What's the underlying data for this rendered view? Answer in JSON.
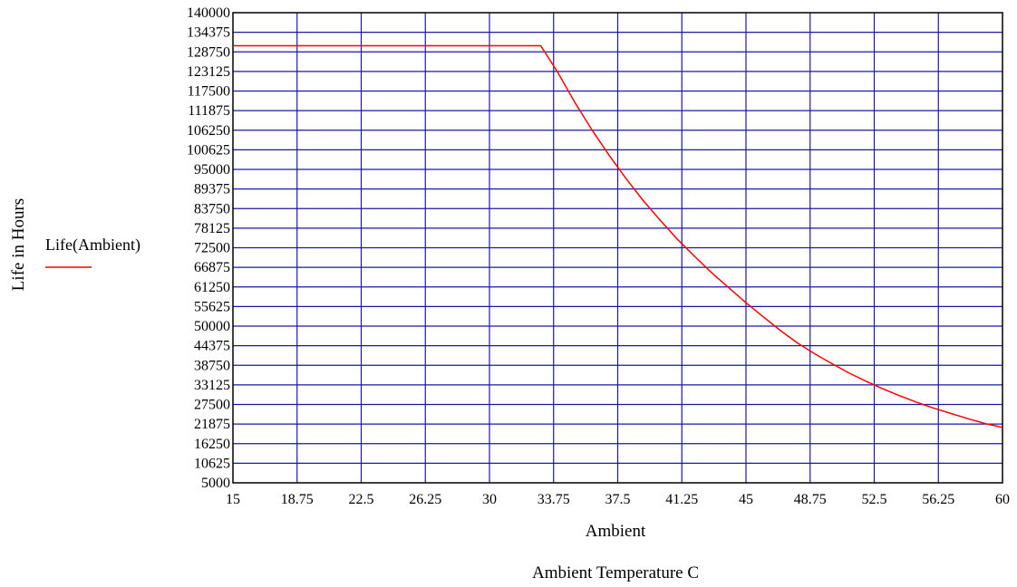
{
  "chart_data": {
    "type": "line",
    "xlabel": "Ambient",
    "caption": "Ambient Temperature C",
    "ylabel": "Life in Hours",
    "legend_label": "Life(Ambient)",
    "xlim": [
      15,
      60
    ],
    "ylim": [
      5000,
      140000
    ],
    "x_ticks": [
      "15",
      "18.75",
      "22.5",
      "26.25",
      "30",
      "33.75",
      "37.5",
      "41.25",
      "45",
      "48.75",
      "52.5",
      "56.25",
      "60"
    ],
    "y_ticks": [
      "140000",
      "134375",
      "128750",
      "123125",
      "117500",
      "111875",
      "106250",
      "100625",
      "95000",
      "89375",
      "83750",
      "78125",
      "72500",
      "66875",
      "61250",
      "55625",
      "50000",
      "44375",
      "38750",
      "33125",
      "27500",
      "21875",
      "16250",
      "10625",
      "5000"
    ],
    "grid": true,
    "legend_position": "left",
    "colors": {
      "grid": "#1a1aa6",
      "series": "#ff0000",
      "frame": "#000000"
    },
    "series": [
      {
        "name": "Life(Ambient)",
        "x": [
          15,
          20,
          25,
          30,
          33,
          34,
          35,
          36,
          37,
          38,
          39,
          40,
          41,
          42,
          43,
          44,
          45,
          46,
          47,
          48,
          49,
          50,
          51,
          52,
          53,
          54,
          55,
          56,
          57,
          58,
          59,
          60
        ],
        "values": [
          130500,
          130500,
          130500,
          130500,
          130500,
          122800,
          114200,
          106300,
          99000,
          92300,
          86000,
          80300,
          74900,
          70000,
          65300,
          61000,
          56700,
          52700,
          48800,
          45200,
          42100,
          39300,
          36600,
          34200,
          32000,
          30000,
          28100,
          26400,
          24900,
          23400,
          22000,
          20900
        ]
      }
    ]
  }
}
